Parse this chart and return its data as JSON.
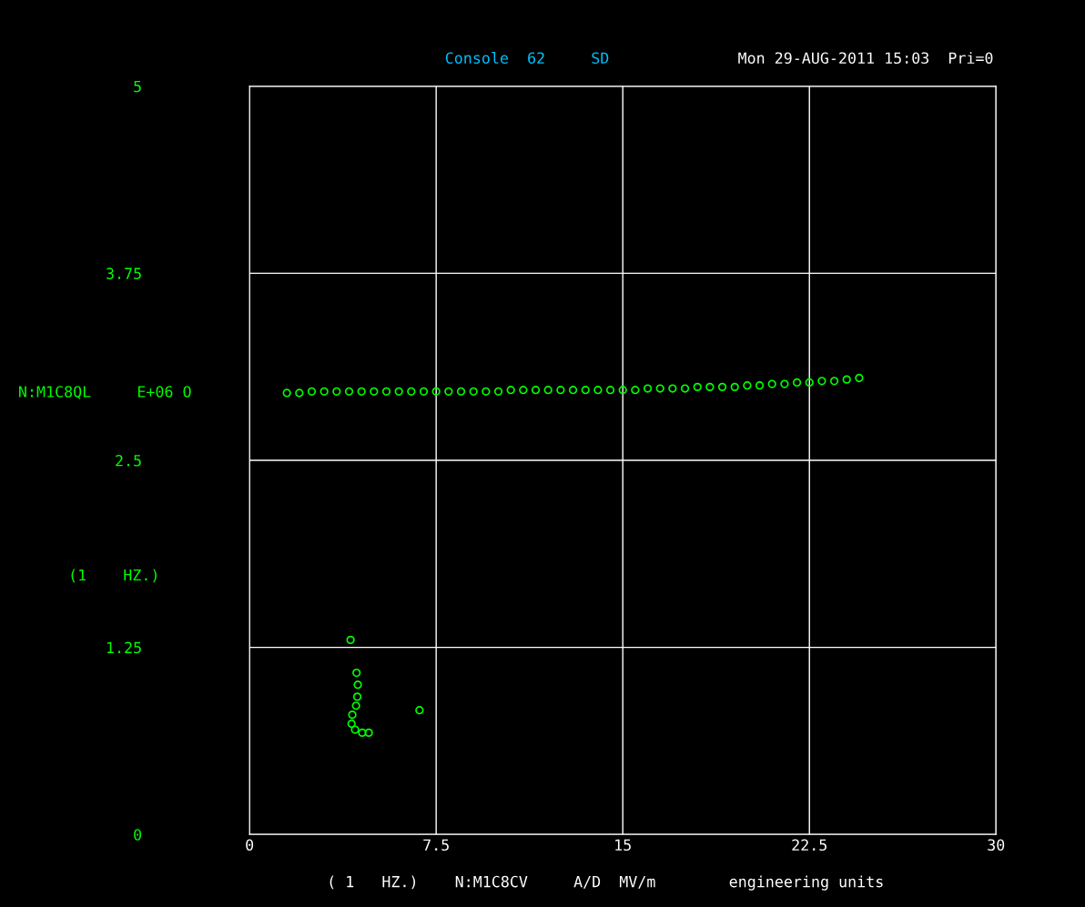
{
  "chart_data": {
    "type": "scatter",
    "xlabel": "( 1   HZ.)    N:M1C8CV     A/D  MV/m        engineering units",
    "ylabel": "N:M1C8QL     E+06 O",
    "annotations": [
      "Console  62     SD",
      "Mon 29-AUG-2011 15:03  Pri=0",
      "(1    HZ.)"
    ],
    "xlim": [
      0,
      30
    ],
    "xticks": [
      0,
      7.5,
      15,
      22.5,
      30
    ],
    "ylim": [
      0,
      5
    ],
    "yticks": [
      0,
      1.25,
      2.5,
      3.75,
      5
    ],
    "grid": true,
    "marker": "circle",
    "series": [
      {
        "color": "#00ff00",
        "x": [
          1.5,
          2,
          2.5,
          3,
          3.5,
          4,
          4.5,
          5,
          5.5,
          6,
          6.5,
          7,
          7.5,
          8,
          8.5,
          9,
          9.5,
          10,
          10.5,
          11,
          11.5,
          12,
          12.5,
          13,
          13.5,
          14,
          14.5,
          15,
          15.5,
          16,
          16.5,
          17,
          17.5,
          18,
          18.5,
          19,
          19.5,
          20,
          20.5,
          21,
          21.5,
          22,
          22.5,
          23,
          23.5,
          24,
          24.5
        ],
        "values": [
          2.95,
          2.95,
          2.96,
          2.96,
          2.96,
          2.96,
          2.96,
          2.96,
          2.96,
          2.96,
          2.96,
          2.96,
          2.96,
          2.96,
          2.96,
          2.96,
          2.96,
          2.96,
          2.97,
          2.97,
          2.97,
          2.97,
          2.97,
          2.97,
          2.97,
          2.97,
          2.97,
          2.97,
          2.97,
          2.98,
          2.98,
          2.98,
          2.98,
          2.99,
          2.99,
          2.99,
          2.99,
          3.0,
          3.0,
          3.01,
          3.01,
          3.02,
          3.02,
          3.03,
          3.03,
          3.04,
          3.05
        ]
      },
      {
        "color": "#00ff00",
        "x": [
          4.06,
          4.3,
          4.35,
          4.33,
          4.28,
          4.13,
          4.1,
          4.24,
          4.53,
          4.79,
          6.83
        ],
        "values": [
          1.3,
          1.08,
          1.0,
          0.92,
          0.86,
          0.8,
          0.74,
          0.7,
          0.68,
          0.68,
          0.83
        ]
      }
    ]
  }
}
